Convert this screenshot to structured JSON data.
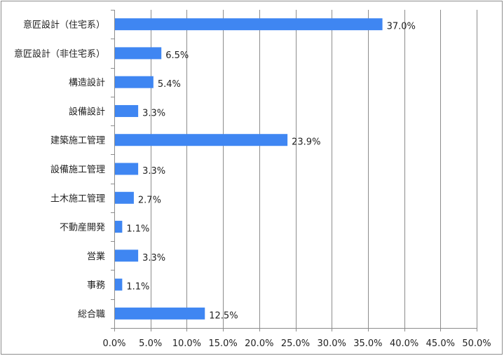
{
  "chart_data": {
    "type": "bar",
    "orientation": "horizontal",
    "categories": [
      "意匠設計（住宅系）",
      "意匠設計（非住宅系）",
      "構造設計",
      "設備設計",
      "建築施工管理",
      "設備施工管理",
      "土木施工管理",
      "不動産開発",
      "営業",
      "事務",
      "総合職"
    ],
    "values": [
      37.0,
      6.5,
      5.4,
      3.3,
      23.9,
      3.3,
      2.7,
      1.1,
      3.3,
      1.1,
      12.5
    ],
    "value_labels": [
      "37.0%",
      "6.5%",
      "5.4%",
      "3.3%",
      "23.9%",
      "3.3%",
      "2.7%",
      "1.1%",
      "3.3%",
      "1.1%",
      "12.5%"
    ],
    "x_ticks": [
      0,
      5,
      10,
      15,
      20,
      25,
      30,
      35,
      40,
      45,
      50
    ],
    "x_tick_labels": [
      "0.0%",
      "5.0%",
      "10.0%",
      "15.0%",
      "20.0%",
      "25.0%",
      "30.0%",
      "35.0%",
      "40.0%",
      "45.0%",
      "50.0%"
    ],
    "xlim": [
      0,
      50
    ],
    "title": "",
    "xlabel": "",
    "ylabel": "",
    "grid": "vertical",
    "legend": "none",
    "bar_color": "#3f86f2",
    "grid_color": "#8c8c8c"
  }
}
